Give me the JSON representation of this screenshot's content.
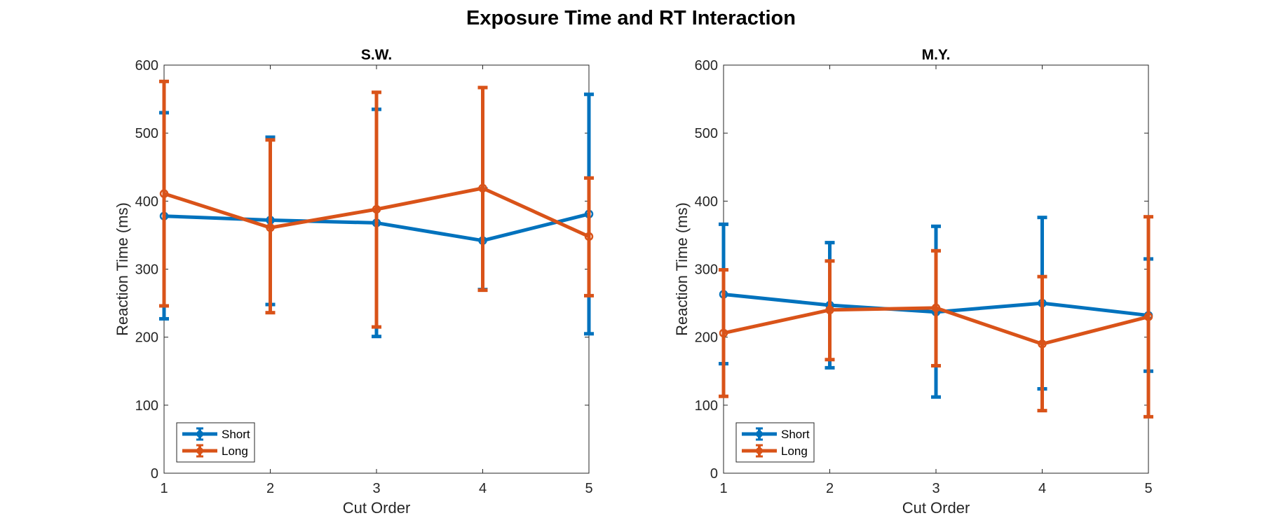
{
  "figure": {
    "title": "Exposure Time and RT Interaction"
  },
  "colors": {
    "short": "#0072BD",
    "long": "#D95319",
    "axis": "#262626"
  },
  "chart_data": [
    {
      "type": "line",
      "title": "S.W.",
      "xlabel": "Cut Order",
      "ylabel": "Reaction Time (ms)",
      "xlim": [
        1,
        5
      ],
      "ylim": [
        0,
        600
      ],
      "xticks": [
        1,
        2,
        3,
        4,
        5
      ],
      "yticks": [
        0,
        100,
        200,
        300,
        400,
        500,
        600
      ],
      "error_bars": true,
      "legend_position": "bottom-left",
      "series": [
        {
          "name": "Short",
          "color_key": "short",
          "x": [
            1,
            2,
            3,
            4,
            5
          ],
          "y": [
            378,
            372,
            368,
            342,
            381
          ],
          "lower": [
            227,
            248,
            201,
            270,
            205
          ],
          "upper": [
            530,
            494,
            535,
            418,
            557
          ]
        },
        {
          "name": "Long",
          "color_key": "long",
          "x": [
            1,
            2,
            3,
            4,
            5
          ],
          "y": [
            411,
            361,
            388,
            419,
            348
          ],
          "lower": [
            246,
            236,
            215,
            269,
            261
          ],
          "upper": [
            576,
            490,
            560,
            567,
            434
          ]
        }
      ]
    },
    {
      "type": "line",
      "title": "M.Y.",
      "xlabel": "Cut Order",
      "ylabel": "Reaction Time (ms)",
      "xlim": [
        1,
        5
      ],
      "ylim": [
        0,
        600
      ],
      "xticks": [
        1,
        2,
        3,
        4,
        5
      ],
      "yticks": [
        0,
        100,
        200,
        300,
        400,
        500,
        600
      ],
      "error_bars": true,
      "legend_position": "bottom-left",
      "series": [
        {
          "name": "Short",
          "color_key": "short",
          "x": [
            1,
            2,
            3,
            4,
            5
          ],
          "y": [
            263,
            247,
            237,
            250,
            232
          ],
          "lower": [
            161,
            155,
            112,
            124,
            150
          ],
          "upper": [
            366,
            339,
            363,
            376,
            315
          ]
        },
        {
          "name": "Long",
          "color_key": "long",
          "x": [
            1,
            2,
            3,
            4,
            5
          ],
          "y": [
            206,
            240,
            243,
            190,
            230
          ],
          "lower": [
            113,
            167,
            158,
            92,
            83
          ],
          "upper": [
            299,
            312,
            327,
            289,
            377
          ]
        }
      ]
    }
  ]
}
